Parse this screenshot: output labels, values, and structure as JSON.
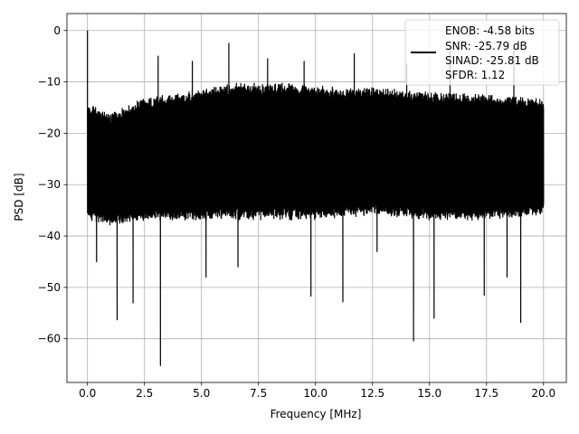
{
  "chart_data": {
    "type": "line",
    "title": "",
    "xlabel": "Frequency [MHz]",
    "ylabel": "PSD [dB]",
    "xlim": [
      -0.9,
      21.0
    ],
    "ylim": [
      -68.5,
      3.3
    ],
    "xticks": [
      0.0,
      2.5,
      5.0,
      7.5,
      10.0,
      12.5,
      15.0,
      17.5,
      20.0
    ],
    "xtick_labels": [
      "0.0",
      "2.5",
      "5.0",
      "7.5",
      "10.0",
      "12.5",
      "15.0",
      "17.5",
      "20.0"
    ],
    "yticks": [
      0,
      -10,
      -20,
      -30,
      -40,
      -50,
      -60
    ],
    "ytick_labels": [
      "0",
      "−10",
      "−20",
      "−30",
      "−40",
      "−50",
      "−60"
    ],
    "grid": true,
    "legend_position": "top-right",
    "series": [
      {
        "color": "#000000",
        "legend_lines": [
          "ENOB: -4.58 bits",
          "SNR: -25.79 dB",
          "SINAD: -25.81 dB",
          "SFDR: 1.12"
        ],
        "noise_upper_envelope": {
          "x": [
            0.0,
            1.0,
            2.5,
            4.0,
            5.0,
            7.0,
            9.0,
            11.0,
            12.5,
            14.0,
            16.0,
            18.0,
            20.0
          ],
          "y": [
            -14,
            -16,
            -13,
            -12,
            -11,
            -10,
            -10,
            -11,
            -11,
            -11.5,
            -12,
            -12.5,
            -13
          ]
        },
        "noise_lower_envelope": {
          "x": [
            0.0,
            1.0,
            2.5,
            5.0,
            7.5,
            10.0,
            12.5,
            15.0,
            17.5,
            20.0
          ],
          "y": [
            -37,
            -38,
            -37,
            -37,
            -37,
            -37,
            -36,
            -37,
            -37,
            -36
          ]
        },
        "peaks": [
          {
            "x": 0.0,
            "y": 0.0
          },
          {
            "x": 6.2,
            "y": -2.5
          },
          {
            "x": 7.9,
            "y": -5.5
          },
          {
            "x": 11.7,
            "y": -4.5
          },
          {
            "x": 15.9,
            "y": -4.0
          },
          {
            "x": 18.7,
            "y": -3.5
          },
          {
            "x": 3.1,
            "y": -5.0
          },
          {
            "x": 4.6,
            "y": -6.0
          },
          {
            "x": 9.5,
            "y": -6.0
          },
          {
            "x": 14.0,
            "y": -6.5
          }
        ],
        "dips": [
          {
            "x": 0.4,
            "y": -45.0
          },
          {
            "x": 1.3,
            "y": -56.3
          },
          {
            "x": 2.0,
            "y": -53.0
          },
          {
            "x": 3.2,
            "y": -65.2
          },
          {
            "x": 5.2,
            "y": -48.0
          },
          {
            "x": 6.6,
            "y": -46.0
          },
          {
            "x": 9.8,
            "y": -51.7
          },
          {
            "x": 11.2,
            "y": -52.8
          },
          {
            "x": 12.7,
            "y": -43.0
          },
          {
            "x": 14.3,
            "y": -60.4
          },
          {
            "x": 15.2,
            "y": -56.0
          },
          {
            "x": 17.4,
            "y": -51.5
          },
          {
            "x": 18.4,
            "y": -48.0
          },
          {
            "x": 19.0,
            "y": -56.8
          }
        ]
      }
    ]
  }
}
